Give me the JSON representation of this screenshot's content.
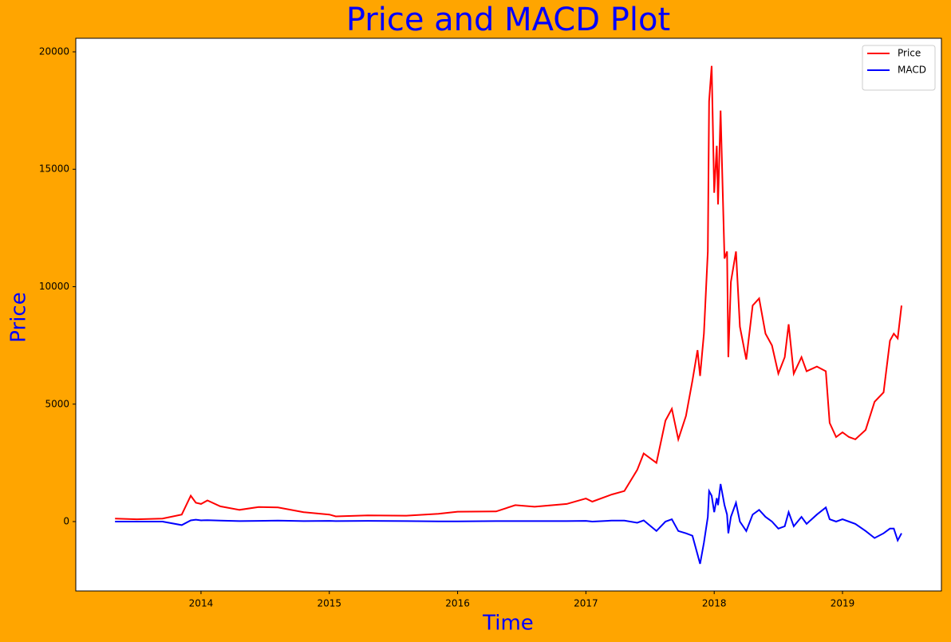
{
  "chart_data": {
    "type": "line",
    "title": "Price and MACD Plot",
    "xlabel": "Time",
    "ylabel": "Price",
    "x": [
      2013.33,
      2013.5,
      2013.7,
      2013.85,
      2013.92,
      2013.96,
      2014.0,
      2014.05,
      2014.15,
      2014.3,
      2014.45,
      2014.6,
      2014.8,
      2015.0,
      2015.05,
      2015.3,
      2015.6,
      2015.85,
      2016.0,
      2016.3,
      2016.45,
      2016.6,
      2016.85,
      2017.0,
      2017.05,
      2017.2,
      2017.3,
      2017.4,
      2017.45,
      2017.55,
      2017.62,
      2017.67,
      2017.72,
      2017.78,
      2017.83,
      2017.87,
      2017.89,
      2017.92,
      2017.95,
      2017.96,
      2017.98,
      2018.0,
      2018.02,
      2018.03,
      2018.05,
      2018.08,
      2018.1,
      2018.11,
      2018.13,
      2018.17,
      2018.2,
      2018.25,
      2018.3,
      2018.35,
      2018.4,
      2018.45,
      2018.5,
      2018.55,
      2018.58,
      2018.62,
      2018.68,
      2018.72,
      2018.8,
      2018.87,
      2018.9,
      2018.95,
      2019.0,
      2019.05,
      2019.1,
      2019.18,
      2019.25,
      2019.32,
      2019.37,
      2019.4,
      2019.43,
      2019.46
    ],
    "series": [
      {
        "name": "Price",
        "color": "#ff0000",
        "values": [
          130,
          100,
          130,
          300,
          1100,
          800,
          750,
          900,
          650,
          500,
          620,
          600,
          400,
          300,
          220,
          260,
          250,
          330,
          420,
          430,
          700,
          630,
          750,
          980,
          850,
          1150,
          1300,
          2200,
          2900,
          2500,
          4300,
          4800,
          3500,
          4500,
          6000,
          7300,
          6200,
          8000,
          11500,
          17900,
          19400,
          14000,
          16000,
          13500,
          17500,
          11200,
          11500,
          7000,
          10200,
          11500,
          8300,
          6900,
          9200,
          9500,
          8000,
          7500,
          6300,
          7000,
          8400,
          6300,
          7000,
          6400,
          6600,
          6400,
          4200,
          3600,
          3800,
          3600,
          3500,
          3900,
          5100,
          5500,
          7700,
          8000,
          7800,
          9200
        ]
      },
      {
        "name": "MACD",
        "color": "#0000ff",
        "values": [
          0,
          0,
          0,
          -150,
          50,
          80,
          50,
          60,
          40,
          20,
          30,
          40,
          20,
          30,
          20,
          30,
          20,
          10,
          10,
          20,
          20,
          20,
          20,
          30,
          0,
          40,
          40,
          -50,
          50,
          -400,
          0,
          100,
          -400,
          -500,
          -600,
          -1400,
          -1800,
          -900,
          200,
          1300,
          1100,
          400,
          1000,
          700,
          1600,
          700,
          300,
          -500,
          200,
          800,
          0,
          -400,
          300,
          500,
          200,
          0,
          -300,
          -200,
          400,
          -200,
          200,
          -100,
          300,
          600,
          100,
          0,
          100,
          0,
          -100,
          -400,
          -700,
          -500,
          -300,
          -300,
          -800,
          -500
        ]
      }
    ],
    "xlim": [
      2013.024,
      2019.771
    ],
    "xticks": [
      2014,
      2015,
      2016,
      2017,
      2018,
      2019
    ],
    "ylim": [
      -2954,
      20577
    ],
    "yticks": [
      0,
      5000,
      10000,
      15000,
      20000
    ],
    "legend": "upper right"
  }
}
